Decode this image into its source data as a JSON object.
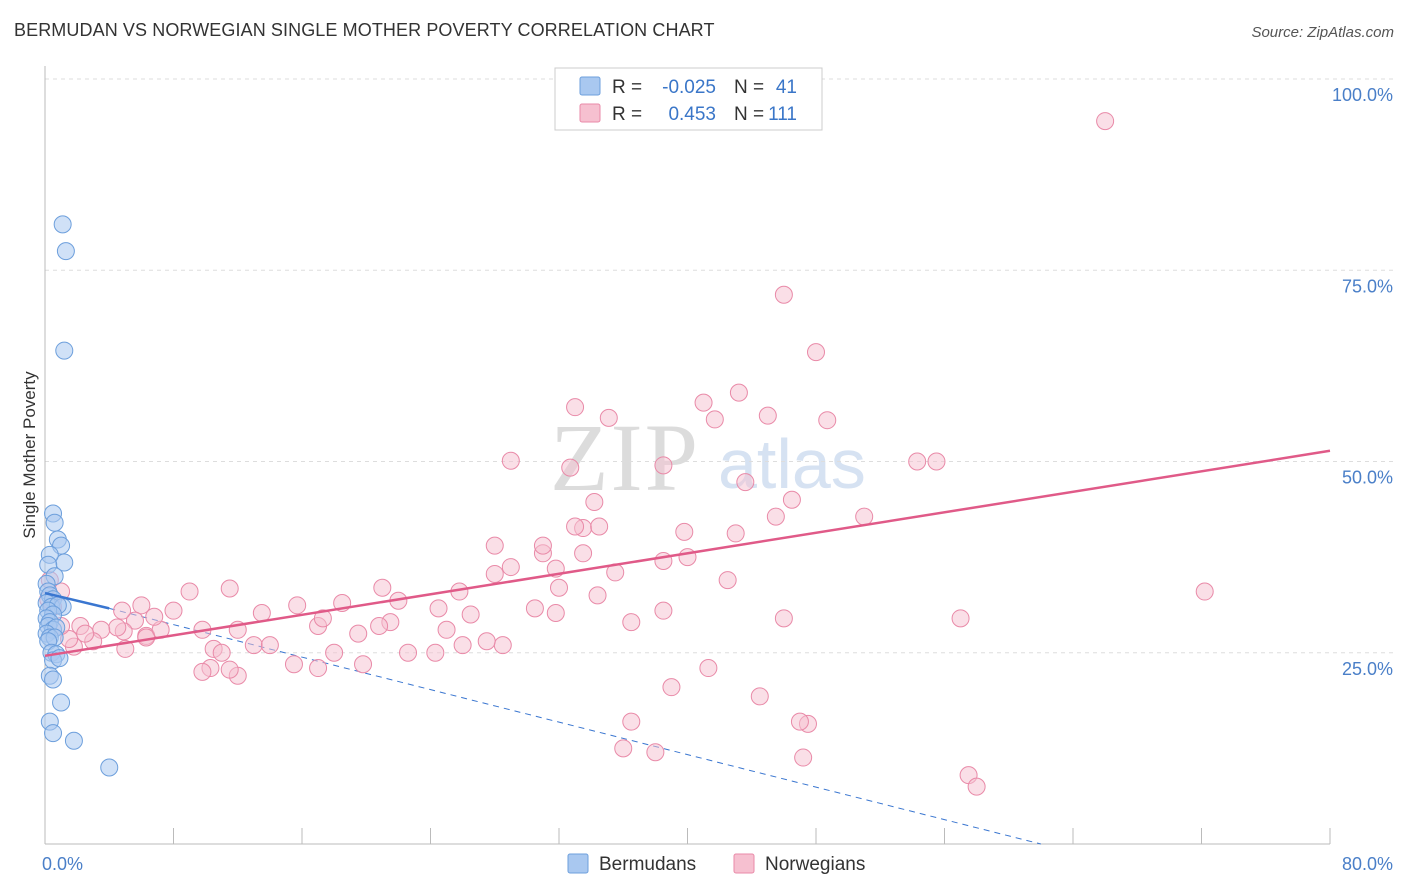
{
  "title": "BERMUDAN VS NORWEGIAN SINGLE MOTHER POVERTY CORRELATION CHART",
  "source": "Source: ZipAtlas.com",
  "watermark": {
    "zip": "ZIP",
    "atlas": "atlas"
  },
  "colors": {
    "blue_fill": "#a9c8f0",
    "blue_stroke": "#6d9fdc",
    "blue_line": "#3a76d0",
    "pink_fill": "#f6c0d0",
    "pink_stroke": "#e98aa8",
    "pink_line": "#e05a88",
    "grid": "#dddddd",
    "axis_text": "#4a7fc8"
  },
  "legend": {
    "rows": [
      {
        "r_label": "R =",
        "r_value": "-0.025",
        "n_label": "N =",
        "n_value": "41"
      },
      {
        "r_label": "R =",
        "r_value": "0.453",
        "n_label": "N =",
        "n_value": "111"
      }
    ]
  },
  "chart_data": {
    "type": "scatter",
    "title": "BERMUDAN VS NORWEGIAN SINGLE MOTHER POVERTY CORRELATION CHART",
    "xlabel": "",
    "ylabel": "Single Mother Poverty",
    "xlim": [
      0,
      80
    ],
    "ylim": [
      0,
      100
    ],
    "x_tick_labels": [
      {
        "value": 0,
        "label": "0.0%"
      },
      {
        "value": 80,
        "label": "80.0%"
      }
    ],
    "x_tick_marks": [
      0,
      8,
      16,
      24,
      32,
      40,
      48,
      56,
      64,
      72,
      80
    ],
    "y_ticks": [
      {
        "value": 25,
        "label": "25.0%"
      },
      {
        "value": 50,
        "label": "50.0%"
      },
      {
        "value": 75,
        "label": "75.0%"
      },
      {
        "value": 100,
        "label": "100.0%"
      }
    ],
    "grid": true,
    "legend_position": "top-center",
    "series": [
      {
        "name": "Bermudans",
        "color_key": "blue",
        "points": [
          [
            1.1,
            81
          ],
          [
            1.3,
            77.5
          ],
          [
            1.2,
            64.5
          ],
          [
            0.5,
            43.2
          ],
          [
            0.6,
            42
          ],
          [
            0.8,
            39.8
          ],
          [
            1,
            39
          ],
          [
            1.2,
            36.8
          ],
          [
            0.3,
            37.8
          ],
          [
            0.2,
            36.5
          ],
          [
            0.6,
            35
          ],
          [
            0.1,
            34
          ],
          [
            0.2,
            33
          ],
          [
            0.3,
            32.5
          ],
          [
            0.5,
            32
          ],
          [
            0.1,
            31.5
          ],
          [
            0.4,
            31
          ],
          [
            1.1,
            31
          ],
          [
            0.8,
            31.2
          ],
          [
            0.2,
            30.5
          ],
          [
            0.5,
            30
          ],
          [
            0.1,
            29.5
          ],
          [
            0.3,
            29
          ],
          [
            0.2,
            28.5
          ],
          [
            0.5,
            28
          ],
          [
            0.7,
            28.3
          ],
          [
            0.1,
            27.5
          ],
          [
            0.3,
            27
          ],
          [
            0.6,
            27
          ],
          [
            0.2,
            26.5
          ],
          [
            0.4,
            25
          ],
          [
            0.7,
            24.8
          ],
          [
            0.5,
            24
          ],
          [
            0.9,
            24.3
          ],
          [
            0.3,
            22
          ],
          [
            0.5,
            21.5
          ],
          [
            1,
            18.5
          ],
          [
            0.3,
            16
          ],
          [
            0.5,
            14.5
          ],
          [
            1.8,
            13.5
          ],
          [
            4,
            10
          ]
        ],
        "trend": {
          "x": [
            0,
            4
          ],
          "y": [
            32.8,
            30.8
          ]
        },
        "trend_extension": {
          "x": [
            4,
            62
          ],
          "y": [
            30.8,
            0
          ]
        }
      },
      {
        "name": "Norwegians",
        "color_key": "pink",
        "points": [
          [
            66,
            94.5
          ],
          [
            46,
            71.8
          ],
          [
            48,
            64.3
          ],
          [
            43.2,
            59
          ],
          [
            41,
            57.7
          ],
          [
            45,
            56
          ],
          [
            33,
            57.1
          ],
          [
            41.7,
            55.5
          ],
          [
            35.1,
            55.7
          ],
          [
            48.7,
            55.4
          ],
          [
            29,
            50.1
          ],
          [
            38.5,
            49.5
          ],
          [
            55.5,
            50
          ],
          [
            54.3,
            50
          ],
          [
            32.7,
            49.2
          ],
          [
            34.2,
            44.7
          ],
          [
            46.5,
            45
          ],
          [
            43.6,
            47.3
          ],
          [
            51,
            42.8
          ],
          [
            33.5,
            41.3
          ],
          [
            34.5,
            41.5
          ],
          [
            39.8,
            40.8
          ],
          [
            31,
            38
          ],
          [
            45.5,
            42.8
          ],
          [
            33,
            41.5
          ],
          [
            43,
            40.6
          ],
          [
            33.5,
            38
          ],
          [
            40,
            37.5
          ],
          [
            31,
            39
          ],
          [
            28,
            39
          ],
          [
            29,
            36.2
          ],
          [
            35.5,
            35.5
          ],
          [
            38.5,
            37
          ],
          [
            31.8,
            36
          ],
          [
            28,
            35.3
          ],
          [
            34.4,
            32.5
          ],
          [
            42.5,
            34.5
          ],
          [
            25.8,
            33
          ],
          [
            30.5,
            30.8
          ],
          [
            26.5,
            30
          ],
          [
            21.5,
            29
          ],
          [
            20.8,
            28.5
          ],
          [
            24.5,
            30.8
          ],
          [
            26,
            26
          ],
          [
            21,
            33.5
          ],
          [
            18.5,
            31.5
          ],
          [
            19.5,
            27.5
          ],
          [
            17,
            28.5
          ],
          [
            17.3,
            29.5
          ],
          [
            15.7,
            31.2
          ],
          [
            22,
            31.8
          ],
          [
            13.5,
            30.2
          ],
          [
            11.5,
            33.4
          ],
          [
            9,
            33
          ],
          [
            8,
            30.5
          ],
          [
            6,
            31.2
          ],
          [
            6.3,
            27.2
          ],
          [
            5.6,
            29.2
          ],
          [
            4.9,
            27.8
          ],
          [
            4.5,
            28.3
          ],
          [
            4.8,
            30.5
          ],
          [
            3.5,
            28
          ],
          [
            3,
            26.5
          ],
          [
            2.2,
            28.5
          ],
          [
            2.5,
            27.5
          ],
          [
            1.8,
            25.8
          ],
          [
            1.5,
            26.8
          ],
          [
            1,
            28.5
          ],
          [
            0.5,
            31
          ],
          [
            1,
            33
          ],
          [
            0.3,
            34.5
          ],
          [
            0.2,
            32
          ],
          [
            9.8,
            28
          ],
          [
            12,
            28
          ],
          [
            10.5,
            25.5
          ],
          [
            11,
            25
          ],
          [
            13,
            26
          ],
          [
            14,
            26
          ],
          [
            15.5,
            23.5
          ],
          [
            17,
            23
          ],
          [
            18,
            25
          ],
          [
            19.8,
            23.5
          ],
          [
            22.6,
            25
          ],
          [
            24.3,
            25
          ],
          [
            25,
            28
          ],
          [
            28.5,
            26
          ],
          [
            27.5,
            26.5
          ],
          [
            12,
            22
          ],
          [
            11.5,
            22.8
          ],
          [
            10.3,
            23
          ],
          [
            9.8,
            22.5
          ],
          [
            7.2,
            28
          ],
          [
            6.8,
            29.7
          ],
          [
            5,
            25.5
          ],
          [
            6.3,
            27
          ],
          [
            36.5,
            29
          ],
          [
            38.5,
            30.5
          ],
          [
            39,
            20.5
          ],
          [
            36.5,
            16
          ],
          [
            36,
            12.5
          ],
          [
            38,
            12
          ],
          [
            32,
            33.5
          ],
          [
            31.8,
            30.2
          ],
          [
            41.3,
            23
          ],
          [
            44.5,
            19.3
          ],
          [
            47.5,
            15.7
          ],
          [
            47.2,
            11.3
          ],
          [
            46,
            29.5
          ],
          [
            47,
            16
          ],
          [
            57.5,
            9
          ],
          [
            58,
            7.5
          ],
          [
            72.2,
            33
          ],
          [
            57,
            29.5
          ]
        ],
        "trend": {
          "x": [
            0,
            80
          ],
          "y": [
            24.6,
            51.4
          ]
        }
      }
    ]
  },
  "bottom_legend": [
    {
      "label": "Bermudans",
      "color_key": "blue"
    },
    {
      "label": "Norwegians",
      "color_key": "pink"
    }
  ]
}
